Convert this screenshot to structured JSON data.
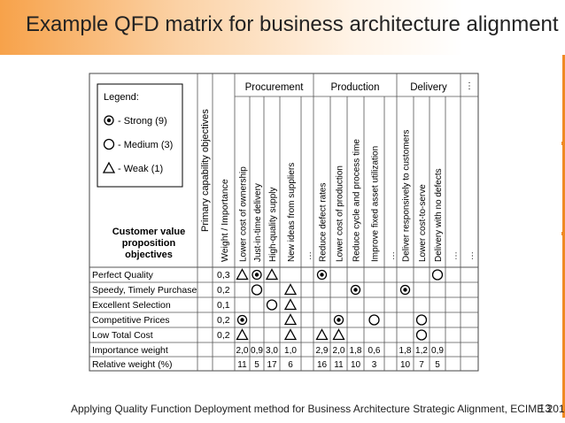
{
  "slide": {
    "title": "Example QFD matrix for business architecture alignment",
    "footer": "Applying Quality Function Deployment method for Business Architecture Strategic Alignment, ECIME 2014",
    "page_number": "13",
    "accent_color": "#f08a24"
  },
  "legend": {
    "title": "Legend:",
    "items": [
      {
        "symbol": "strong",
        "label": "- Strong (9)"
      },
      {
        "symbol": "medium",
        "label": "- Medium (3)"
      },
      {
        "symbol": "weak",
        "label": "- Weak (1)"
      }
    ]
  },
  "matrix": {
    "primary_header": "Primary capability objectives",
    "weight_header": "Weight / Importance",
    "customer_header": [
      "Customer value",
      "proposition",
      "objectives"
    ],
    "groups": [
      "Procurement",
      "Production",
      "Delivery"
    ],
    "columns": [
      "Lower cost of ownership",
      "Just-in-time delivery",
      "High-quality supply",
      "New ideas from suppliers",
      "...",
      "Reduce defect rates",
      "Lower cost of production",
      "Reduce cycle and process time",
      "Improve fixed asset utilization",
      "...",
      "Deliver responsively to customers",
      "Lower cost-to-serve",
      "Delivery with no defects",
      "...",
      "..."
    ],
    "rows": [
      {
        "label": "Perfect Quality",
        "weight": "0,3",
        "cells": [
          "weak",
          "strong",
          "weak",
          "",
          "",
          "strong",
          "",
          "",
          "",
          "",
          "",
          "",
          "medium",
          "",
          ""
        ]
      },
      {
        "label": "Speedy, Timely Purchase",
        "weight": "0,2",
        "cells": [
          "",
          "medium",
          "",
          "weak",
          "",
          "",
          "",
          "strong",
          "",
          "",
          "strong",
          "",
          "",
          "",
          ""
        ]
      },
      {
        "label": "Excellent Selection",
        "weight": "0,1",
        "cells": [
          "",
          "",
          "medium",
          "weak",
          "",
          "",
          "",
          "",
          "",
          "",
          "",
          "",
          "",
          "",
          ""
        ]
      },
      {
        "label": "Competitive Prices",
        "weight": "0,2",
        "cells": [
          "strong",
          "",
          "",
          "weak",
          "",
          "",
          "strong",
          "",
          "medium",
          "",
          "",
          "medium",
          "",
          "",
          ""
        ]
      },
      {
        "label": "Low Total Cost",
        "weight": "0,2",
        "cells": [
          "weak",
          "",
          "",
          "weak",
          "",
          "weak",
          "weak",
          "",
          "",
          "",
          "",
          "medium",
          "",
          "",
          ""
        ]
      }
    ],
    "importance": {
      "label": "Importance weight",
      "values": [
        "2,0",
        "0,9",
        "3,0",
        "1,0",
        "",
        "2,9",
        "2,0",
        "1,8",
        "0,6",
        "",
        "1,8",
        "1,2",
        "0,9",
        "",
        ""
      ]
    },
    "relative": {
      "label": "Relative weight (%)",
      "values": [
        "11",
        "5",
        "17",
        "6",
        "",
        "16",
        "11",
        "10",
        "3",
        "",
        "10",
        "7",
        "5",
        "",
        ""
      ]
    }
  }
}
